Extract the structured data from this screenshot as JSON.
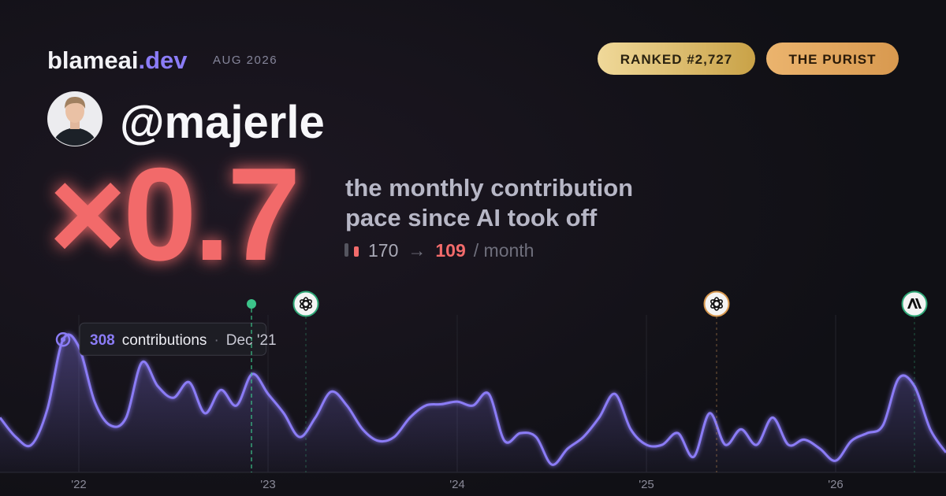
{
  "header": {
    "site": "blameai",
    "site_suffix": ".dev",
    "period": "AUG 2026",
    "badges": [
      "RANKED #2,727",
      "THE PURIST"
    ],
    "handle": "@majerle"
  },
  "headline": {
    "multiplier": "×0.7",
    "caption_lines": [
      "the monthly contribution",
      "pace since AI took off"
    ],
    "before": 170,
    "arrow": "→",
    "after": 109,
    "unit": "/ month"
  },
  "chart_data": {
    "type": "line",
    "categories": [
      null,
      null,
      null,
      null,
      null,
      "'22",
      null,
      null,
      null,
      null,
      null,
      null,
      null,
      null,
      null,
      null,
      null,
      "'23",
      null,
      null,
      null,
      null,
      null,
      null,
      null,
      null,
      null,
      null,
      null,
      "'24",
      null,
      null,
      null,
      null,
      null,
      null,
      null,
      null,
      null,
      null,
      null,
      "'25",
      null,
      null,
      null,
      null,
      null,
      null,
      null,
      null,
      null,
      null,
      null,
      "'26",
      null,
      null,
      null,
      null,
      null,
      null,
      null
    ],
    "values": [
      127,
      82,
      64,
      146,
      308,
      291,
      164,
      109,
      127,
      255,
      200,
      173,
      209,
      137,
      191,
      155,
      228,
      182,
      137,
      82,
      127,
      187,
      155,
      100,
      73,
      82,
      127,
      155,
      158,
      164,
      155,
      182,
      73,
      91,
      82,
      18,
      55,
      82,
      127,
      182,
      100,
      64,
      64,
      91,
      36,
      137,
      64,
      100,
      64,
      127,
      64,
      76,
      55,
      27,
      73,
      91,
      109,
      218,
      200,
      100,
      46
    ],
    "color": "#8b7cf6",
    "ylim": [
      0,
      365
    ],
    "grid": true,
    "tooltip": {
      "value": 308,
      "label": "contributions",
      "separator": "·",
      "date": "Dec '21"
    }
  }
}
